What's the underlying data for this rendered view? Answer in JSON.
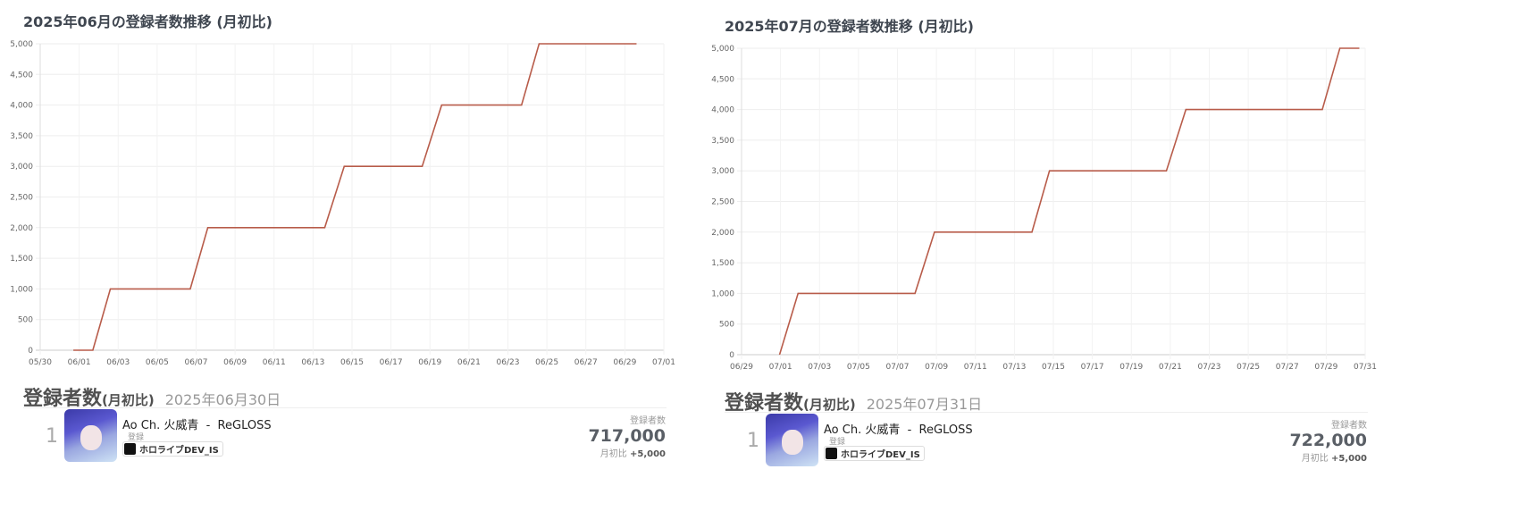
{
  "panels": [
    {
      "title": "2025年06月の登録者数推移 (月初比)",
      "ranking": {
        "heading": "登録者数",
        "heading_sub": "(月初比)",
        "date": "2025年06月30日",
        "rank": "1",
        "name": "Ao Ch. 火威青  -  ReGLOSS",
        "tag": "登録",
        "badge": "ホロライブDEV_IS",
        "count_label": "登録者数",
        "count": "717,000",
        "diff_label": "月初比",
        "diff": "+5,000"
      }
    },
    {
      "title": "2025年07月の登録者数推移 (月初比)",
      "ranking": {
        "heading": "登録者数",
        "heading_sub": "(月初比)",
        "date": "2025年07月31日",
        "rank": "1",
        "name": "Ao Ch. 火威青  -  ReGLOSS",
        "tag": "登録",
        "badge": "ホロライブDEV_IS",
        "count_label": "登録者数",
        "count": "722,000",
        "diff_label": "月初比",
        "diff": "+5,000"
      }
    }
  ],
  "chart_data": [
    {
      "type": "line",
      "title": "2025年06月の登録者数推移 (月初比)",
      "x_unit": "days since 05/30",
      "xlim": [
        0,
        32
      ],
      "ylim": [
        0,
        5000
      ],
      "y_ticks": [
        "0",
        "500",
        "1,000",
        "1,500",
        "2,000",
        "2,500",
        "3,000",
        "3,500",
        "4,000",
        "4,500",
        "5,000"
      ],
      "x_ticks": [
        "05/30",
        "06/01",
        "06/03",
        "06/05",
        "06/07",
        "06/09",
        "06/11",
        "06/13",
        "06/15",
        "06/17",
        "06/19",
        "06/21",
        "06/23",
        "06/25",
        "06/27",
        "06/29",
        "07/01"
      ],
      "color": "#b85c4a",
      "points": [
        [
          1.7,
          0
        ],
        [
          2.7,
          0
        ],
        [
          3.6,
          1000
        ],
        [
          7.7,
          1000
        ],
        [
          8.6,
          2000
        ],
        [
          14.6,
          2000
        ],
        [
          15.6,
          3000
        ],
        [
          19.6,
          3000
        ],
        [
          20.6,
          4000
        ],
        [
          24.7,
          4000
        ],
        [
          25.6,
          5000
        ],
        [
          30.6,
          5000
        ]
      ]
    },
    {
      "type": "line",
      "title": "2025年07月の登録者数推移 (月初比)",
      "x_unit": "days since 06/29",
      "xlim": [
        0,
        32
      ],
      "ylim": [
        0,
        5000
      ],
      "y_ticks": [
        "0",
        "500",
        "1,000",
        "1,500",
        "2,000",
        "2,500",
        "3,000",
        "3,500",
        "4,000",
        "4,500",
        "5,000"
      ],
      "x_ticks": [
        "06/29",
        "07/01",
        "07/03",
        "07/05",
        "07/07",
        "07/09",
        "07/11",
        "07/13",
        "07/15",
        "07/17",
        "07/19",
        "07/21",
        "07/23",
        "07/25",
        "07/27",
        "07/29",
        "07/31"
      ],
      "color": "#b85c4a",
      "points": [
        [
          1.95,
          0
        ],
        [
          2.9,
          1000
        ],
        [
          8.9,
          1000
        ],
        [
          9.9,
          2000
        ],
        [
          14.9,
          2000
        ],
        [
          15.8,
          3000
        ],
        [
          21.8,
          3000
        ],
        [
          22.8,
          4000
        ],
        [
          29.8,
          4000
        ],
        [
          30.7,
          5000
        ],
        [
          31.7,
          5000
        ]
      ]
    }
  ]
}
